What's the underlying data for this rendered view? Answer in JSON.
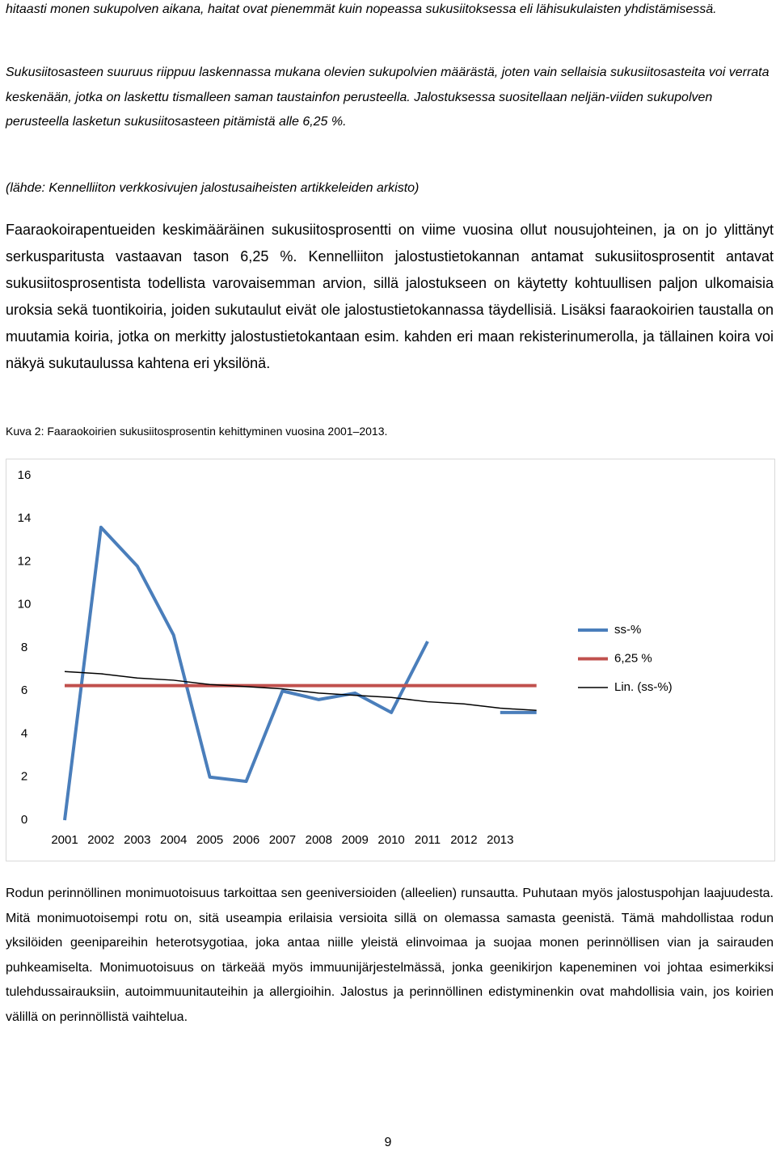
{
  "paragraphs": [
    "hitaasti monen sukupolven aikana, haitat ovat pienemmät kuin nopeassa sukusiitoksessa eli lähisukulaisten yhdistämisessä.",
    "Sukusiitosasteen suuruus riippuu laskennassa mukana olevien sukupolvien määrästä, joten vain sellaisia sukusiitosasteita voi verrata keskenään, jotka on laskettu tismalleen saman taustainfon perusteella. Jalostuksessa suositellaan neljän-viiden sukupolven perusteella lasketun sukusiitosasteen pitämistä alle 6,25 %.",
    "(lähde: Kennelliiton verkkosivujen jalostusaiheisten artikkeleiden arkisto)",
    "Faaraokoirapentueiden keskimääräinen sukusiitosprosentti on viime vuosina ollut nousujohteinen, ja on jo ylittänyt serkusparitusta vastaavan tason 6,25 %. Kennelliiton jalostustietokannan antamat sukusiitosprosentit antavat sukusiitosprosentista todellista varovaisemman arvion, sillä jalostukseen on käytetty kohtuullisen paljon ulkomaisia uroksia sekä tuontikoiria, joiden sukutaulut eivät ole jalostustietokannassa täydellisiä. Lisäksi faaraokoirien taustalla on muutamia koiria, jotka on merkitty jalostustietokantaan esim. kahden eri maan rekisterinumerolla, ja tällainen koira voi näkyä sukutaulussa kahtena eri yksilönä.",
    "Rodun perinnöllinen monimuotoisuus tarkoittaa sen geeniversioiden (alleelien) runsautta. Puhutaan myös jalostuspohjan laajuudesta. Mitä monimuotoisempi rotu on, sitä useampia erilaisia versioita sillä on olemassa samasta geenistä. Tämä mahdollistaa rodun yksilöiden geenipareihin heterotsygotiaa, joka antaa niille yleistä elinvoimaa ja suojaa monen perinnöllisen vian ja sairauden puhkeamiselta. Monimuotoisuus on tärkeää myös immuunijärjestelmässä, jonka geenikirjon kapeneminen voi johtaa esimerkiksi tulehdussairauksiin, autoimmuunitauteihin ja allergioihin. Jalostus ja perinnöllinen edistyminenkin ovat mahdollisia vain, jos koirien välillä on perinnöllistä vaihtelua."
  ],
  "caption": "Kuva 2: Faaraokoirien sukusiitosprosentin kehittyminen vuosina 2001–2013.",
  "page_number": "9",
  "chart_data": {
    "type": "line",
    "categories": [
      "2001",
      "2002",
      "2003",
      "2004",
      "2005",
      "2006",
      "2007",
      "2008",
      "2009",
      "2010",
      "2011",
      "2012",
      "2013",
      null
    ],
    "series": [
      {
        "name": "ss-%",
        "color": "#4a7ebb",
        "linewidth": 4,
        "values": [
          0,
          13.6,
          11.8,
          8.6,
          2.0,
          1.8,
          6.0,
          5.6,
          5.9,
          5.0,
          8.3,
          null,
          5.0,
          5.0
        ]
      },
      {
        "name": "6,25 %",
        "color": "#c0504d",
        "linewidth": 4,
        "values": [
          6.25,
          6.25,
          6.25,
          6.25,
          6.25,
          6.25,
          6.25,
          6.25,
          6.25,
          6.25,
          6.25,
          6.25,
          6.25,
          6.25
        ]
      },
      {
        "name": "Lin. (ss-%)",
        "color": "#000000",
        "linewidth": 1.5,
        "values": [
          6.9,
          6.8,
          6.6,
          6.5,
          6.3,
          6.2,
          6.1,
          5.9,
          5.8,
          5.7,
          5.5,
          5.4,
          5.2,
          5.1
        ]
      }
    ],
    "ylim": [
      0,
      16
    ],
    "yticks": [
      0,
      2,
      4,
      6,
      8,
      10,
      12,
      14,
      16
    ],
    "grid": false,
    "legend": "right"
  }
}
